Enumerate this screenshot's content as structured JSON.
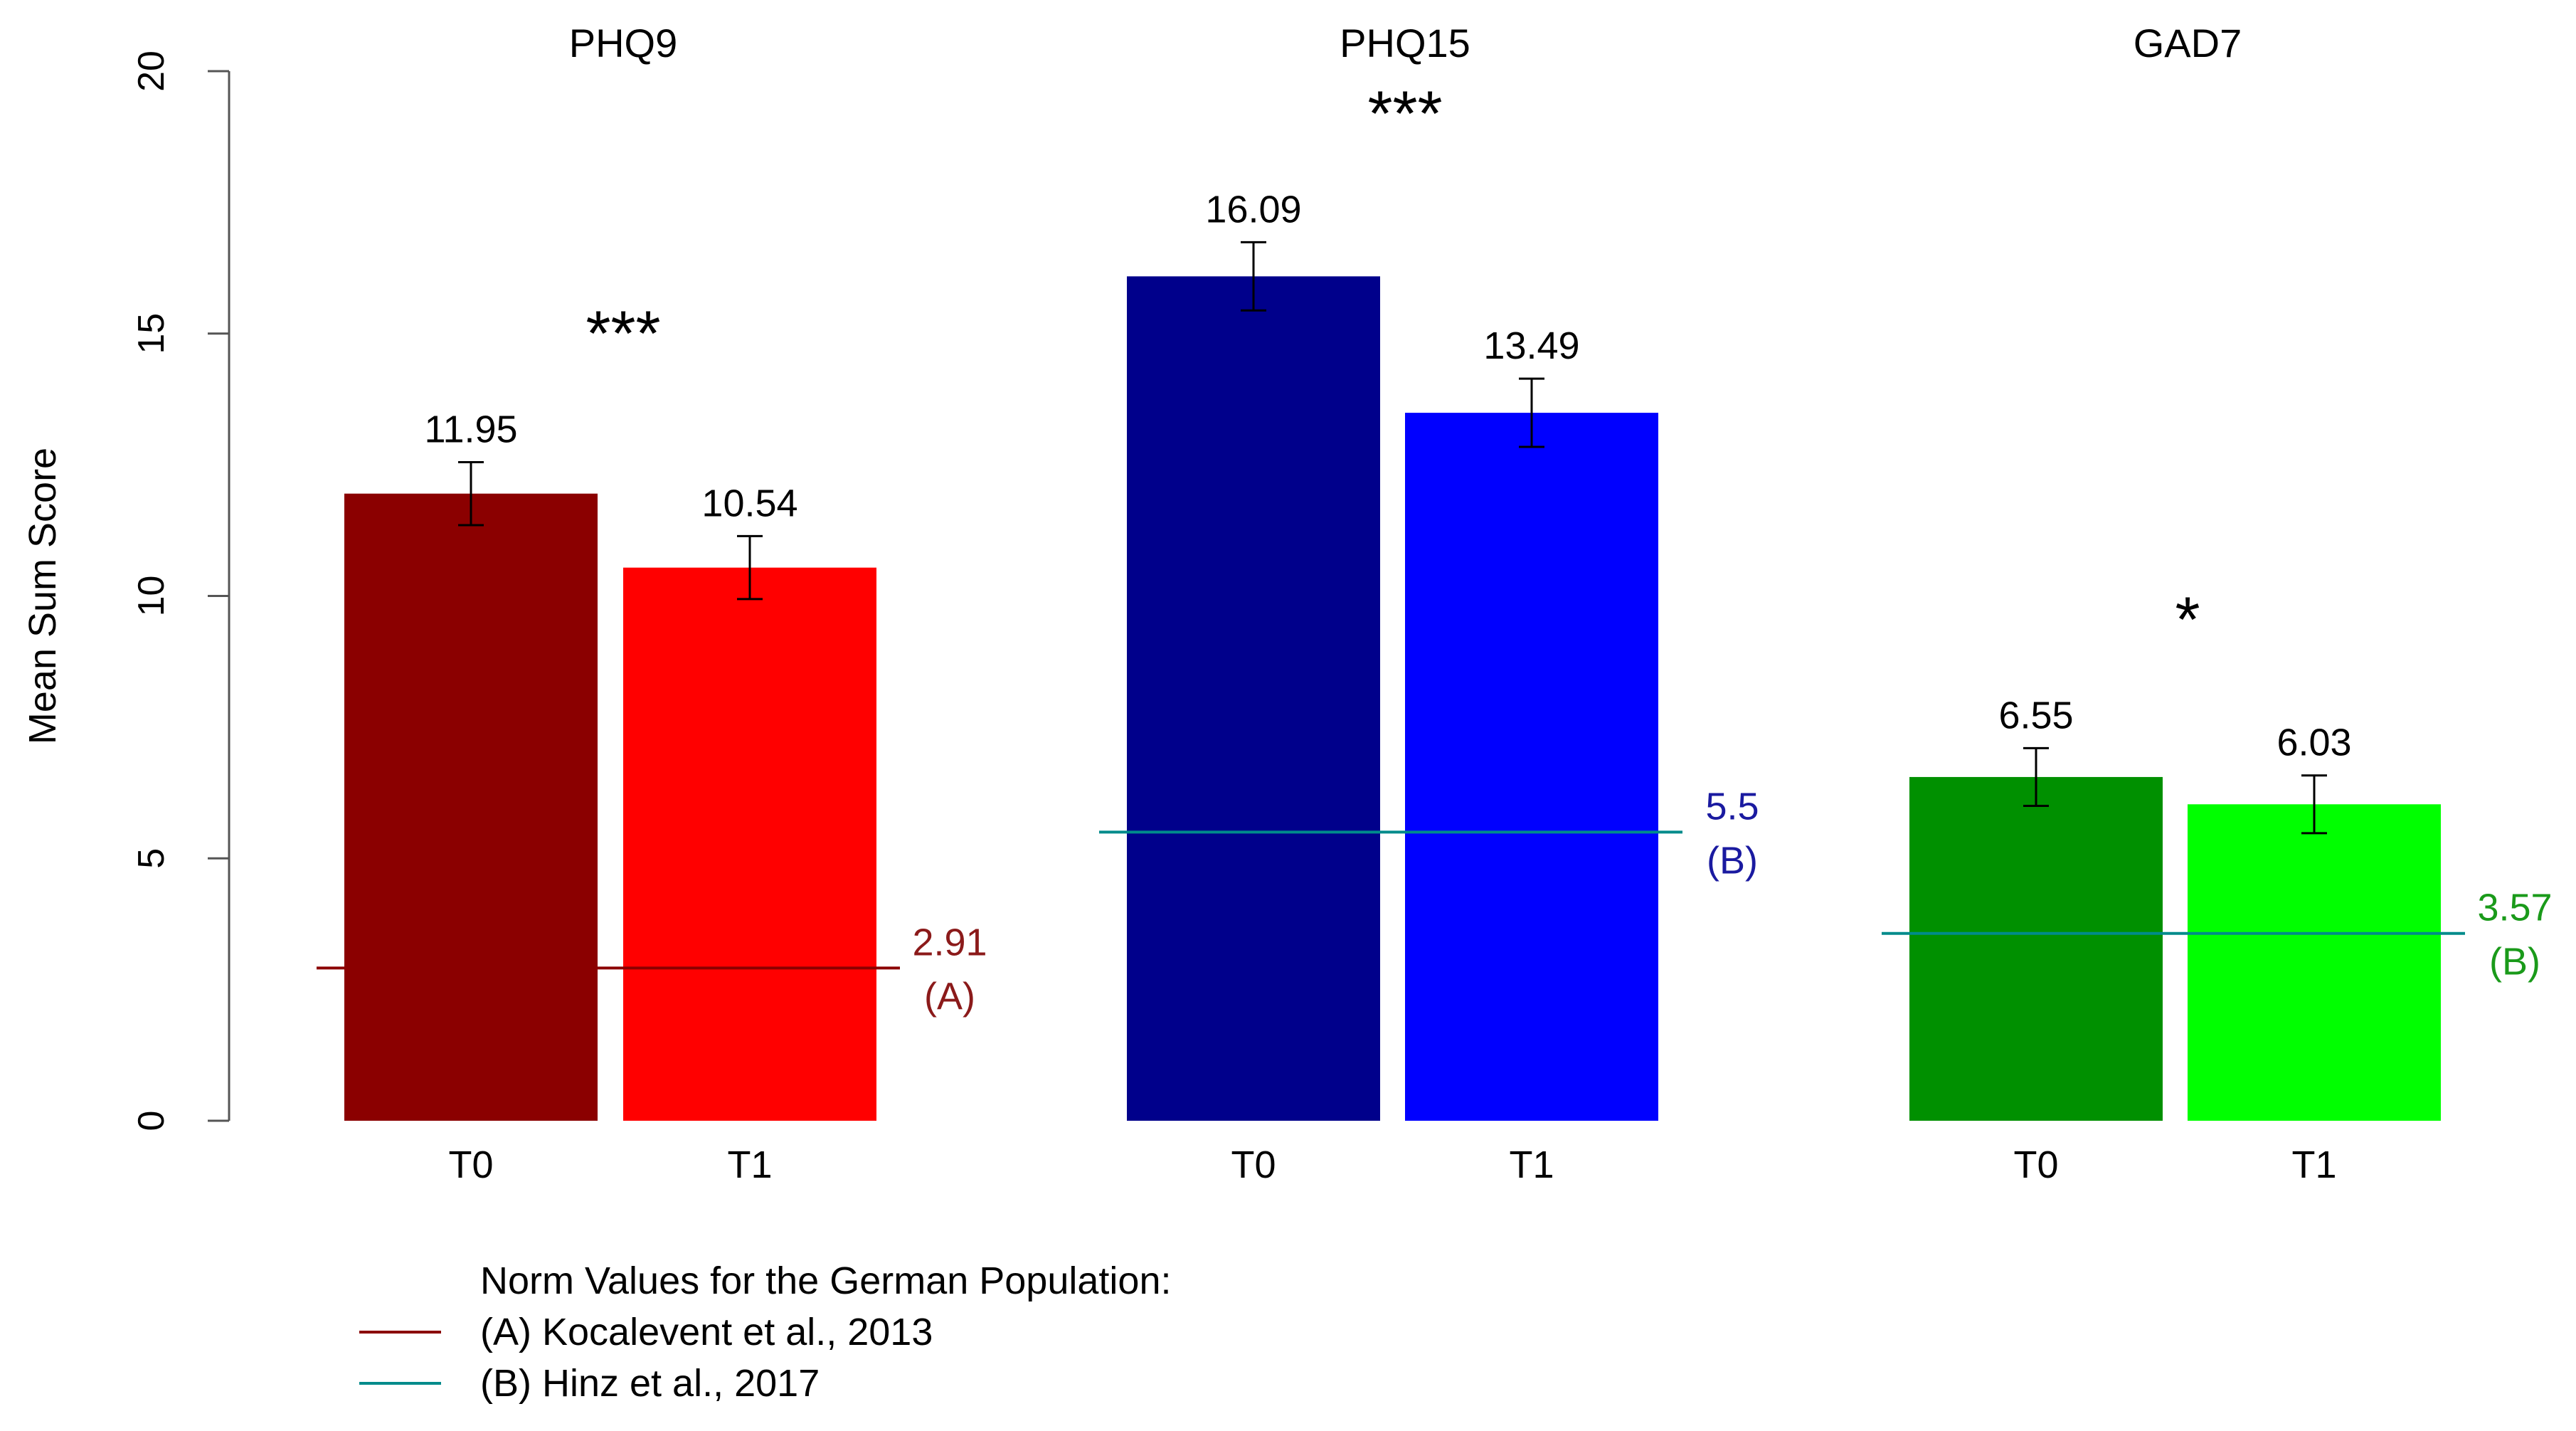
{
  "chart_data": {
    "type": "bar",
    "ylabel": "Mean Sum Score",
    "ylim": [
      0,
      20
    ],
    "yticks": [
      0,
      5,
      10,
      15,
      20
    ],
    "panels": [
      {
        "title": "PHQ9",
        "significance": "***",
        "bars": [
          {
            "label": "T0",
            "value": 11.95,
            "value_label": "11.95",
            "error": 0.6,
            "color": "#8B0000"
          },
          {
            "label": "T1",
            "value": 10.54,
            "value_label": "10.54",
            "error": 0.6,
            "color": "#FF0000"
          }
        ],
        "norm": {
          "value": 2.91,
          "value_label": "2.91",
          "ref": "(A)",
          "line_color": "#8B0000",
          "label_color": "#8B1A1A"
        }
      },
      {
        "title": "PHQ15",
        "significance": "***",
        "bars": [
          {
            "label": "T0",
            "value": 16.09,
            "value_label": "16.09",
            "error": 0.65,
            "color": "#00008B"
          },
          {
            "label": "T1",
            "value": 13.49,
            "value_label": "13.49",
            "error": 0.65,
            "color": "#0000FF"
          }
        ],
        "norm": {
          "value": 5.5,
          "value_label": "5.5",
          "ref": "(B)",
          "line_color": "#008B8B",
          "label_color": "#1A1AA0"
        }
      },
      {
        "title": "GAD7",
        "significance": "*",
        "bars": [
          {
            "label": "T0",
            "value": 6.55,
            "value_label": "6.55",
            "error": 0.55,
            "color": "#009000"
          },
          {
            "label": "T1",
            "value": 6.03,
            "value_label": "6.03",
            "error": 0.55,
            "color": "#00FF00"
          }
        ],
        "norm": {
          "value": 3.57,
          "value_label": "3.57",
          "ref": "(B)",
          "line_color": "#008B8B",
          "label_color": "#1A9A1A"
        }
      }
    ],
    "legend": {
      "title": "Norm Values for the German Population:",
      "entries": [
        {
          "label": "(A) Kocalevent et al., 2013",
          "color": "#8B0000"
        },
        {
          "label": "(B) Hinz et al., 2017",
          "color": "#008B8B"
        }
      ]
    }
  }
}
